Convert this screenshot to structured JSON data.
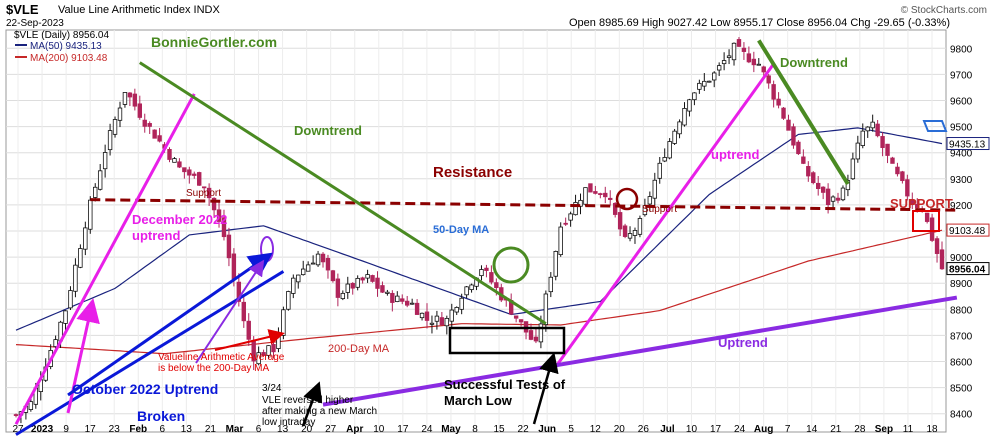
{
  "header": {
    "ticker": "$VLE",
    "name": "Value Line Arithmetic Index INDX",
    "date": "22-Sep-2023",
    "brand": "© StockCharts.com",
    "ohlc": "Open 8985.69  High 9027.42  Low 8955.17  Close 8956.04  Chg -29.65 (-0.33%)"
  },
  "legend": {
    "price": "$VLE (Daily) 8956.04",
    "ma50": "MA(50) 9435.13",
    "ma200": "MA(200) 9103.48"
  },
  "colors": {
    "candle_up": "#111111",
    "candle_down": "#b0245a",
    "ma50": "#1a237e",
    "ma200": "#c62828",
    "downtrend": "#4a8a22",
    "uptrend_magenta": "#e81fe8",
    "uptrend_purple": "#8a2be2",
    "oct_uptrend": "#0a18d8",
    "resistance": "#8b0000",
    "grid": "#dddddd"
  },
  "chart_data": {
    "type": "candlestick",
    "title": "$VLE Value Line Arithmetic Index INDX",
    "ylim": [
      8330,
      9870
    ],
    "y_ticks": [
      8400,
      8500,
      8600,
      8700,
      8800,
      8900,
      9000,
      9100,
      9200,
      9300,
      9400,
      9500,
      9600,
      9700,
      9800
    ],
    "x_ticks": [
      "27",
      "2023",
      "9",
      "17",
      "23",
      "Feb",
      "6",
      "13",
      "21",
      "Mar",
      "6",
      "13",
      "20",
      "27",
      "Apr",
      "10",
      "17",
      "24",
      "May",
      "8",
      "15",
      "22",
      "Jun",
      "5",
      "12",
      "20",
      "26",
      "Jul",
      "10",
      "17",
      "24",
      "Aug",
      "7",
      "14",
      "21",
      "28",
      "Sep",
      "11",
      "18"
    ],
    "price_anchors": [
      [
        0,
        8395
      ],
      [
        3,
        8440
      ],
      [
        10,
        8800
      ],
      [
        14,
        9130
      ],
      [
        18,
        9410
      ],
      [
        22,
        9640
      ],
      [
        26,
        9520
      ],
      [
        33,
        9340
      ],
      [
        38,
        9280
      ],
      [
        42,
        9080
      ],
      [
        46,
        8750
      ],
      [
        48,
        8620
      ],
      [
        52,
        8650
      ],
      [
        56,
        8920
      ],
      [
        61,
        9010
      ],
      [
        65,
        8860
      ],
      [
        71,
        8920
      ],
      [
        75,
        8850
      ],
      [
        80,
        8820
      ],
      [
        83,
        8760
      ],
      [
        87,
        8760
      ],
      [
        90,
        8860
      ],
      [
        94,
        8960
      ],
      [
        101,
        8770
      ],
      [
        105,
        8660
      ],
      [
        110,
        9120
      ],
      [
        115,
        9260
      ],
      [
        119,
        9250
      ],
      [
        123,
        9060
      ],
      [
        126,
        9130
      ],
      [
        131,
        9400
      ],
      [
        136,
        9620
      ],
      [
        141,
        9700
      ],
      [
        145,
        9800
      ],
      [
        150,
        9740
      ],
      [
        155,
        9540
      ],
      [
        159,
        9340
      ],
      [
        164,
        9210
      ],
      [
        167,
        9250
      ],
      [
        171,
        9480
      ],
      [
        173,
        9500
      ],
      [
        177,
        9340
      ],
      [
        181,
        9210
      ],
      [
        183,
        9190
      ],
      [
        187,
        8956
      ]
    ],
    "ma50_anchors": [
      [
        0,
        8720
      ],
      [
        20,
        8880
      ],
      [
        35,
        9085
      ],
      [
        50,
        9120
      ],
      [
        70,
        8985
      ],
      [
        100,
        8780
      ],
      [
        118,
        8830
      ],
      [
        140,
        9240
      ],
      [
        158,
        9470
      ],
      [
        170,
        9495
      ],
      [
        187,
        9435
      ]
    ],
    "ma200_anchors": [
      [
        0,
        8665
      ],
      [
        30,
        8630
      ],
      [
        60,
        8690
      ],
      [
        90,
        8745
      ],
      [
        110,
        8740
      ],
      [
        130,
        8795
      ],
      [
        160,
        8985
      ],
      [
        187,
        9103
      ]
    ],
    "overlay_lines": {
      "dec2022_uptrend": [
        [
          0,
          8360
        ],
        [
          36,
          9625
        ]
      ],
      "oct2022_uptrend": [
        [
          0,
          8320
        ],
        [
          54,
          8945
        ]
      ],
      "downtrend_1": [
        [
          25,
          9745
        ],
        [
          107,
          8745
        ]
      ],
      "uptrend_jun": [
        [
          109,
          8580
        ],
        [
          153,
          9740
        ]
      ],
      "downtrend_aug": [
        [
          150,
          9830
        ],
        [
          168,
          9280
        ]
      ],
      "long_uptrend": [
        [
          62,
          8435
        ],
        [
          190,
          8845
        ]
      ],
      "resistance": [
        [
          15,
          9220
        ],
        [
          190,
          9180
        ]
      ]
    },
    "value_tags": [
      "9435.13",
      "9103.48",
      "8956.04"
    ]
  },
  "annotations": {
    "site": "BonnieGortler.com",
    "downtrend": "Downtrend",
    "downtrend2": "Downtrend",
    "resistance": "Resistance",
    "support_left": "Support",
    "support_mid": "Support",
    "support_right": "SUPPORT",
    "dec_uptrend_1": "December 2022",
    "dec_uptrend_2": "uptrend",
    "ma50_label": "50-Day MA",
    "ma200_label": "200-Day MA",
    "uptrend_jun": "uptrend",
    "uptrend_long": "Uptrend",
    "oct_uptrend": "October 2022 Uptrend",
    "broken": "Broken",
    "below_ma_1": "Valueline Arithmetic Average",
    "below_ma_2": "is below the 200-Day MA",
    "date_324": "3/24",
    "reversed_1": "VLE reversed higher",
    "reversed_2": "after making a new March",
    "reversed_3": "low intraday",
    "success_1": "Successful Tests of",
    "success_2": "March Low"
  }
}
